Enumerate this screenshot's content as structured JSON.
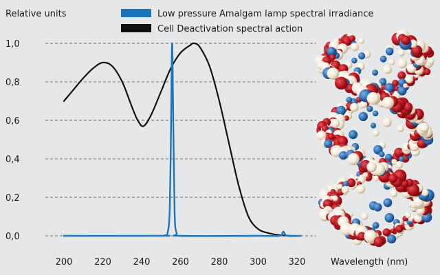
{
  "chart_data": {
    "type": "line",
    "title": "",
    "ylabel": "Relative units",
    "xlabel": "Wavelength (nm)",
    "xlim": [
      200,
      320
    ],
    "ylim": [
      0,
      1
    ],
    "x_ticks": [
      200,
      220,
      240,
      260,
      280,
      300,
      320
    ],
    "y_ticks": [
      {
        "value": 0.0,
        "label": "0,0"
      },
      {
        "value": 0.2,
        "label": "0,2"
      },
      {
        "value": 0.4,
        "label": "0,4"
      },
      {
        "value": 0.6,
        "label": "0,6"
      },
      {
        "value": 0.8,
        "label": "0,8"
      },
      {
        "value": 1.0,
        "label": "1,0"
      }
    ],
    "grid": "horizontal-dashed",
    "legend_position": "top",
    "series": [
      {
        "name": "Low pressure Amalgam lamp spectral irradiance",
        "color": "#1b75bc",
        "x": [
          200,
          250,
          252,
          253.5,
          254.5,
          255.2,
          255.7,
          256.3,
          257,
          258,
          260,
          300,
          311,
          312.5,
          313,
          313.5,
          315,
          322
        ],
        "y": [
          0,
          0,
          0.003,
          0.02,
          0.15,
          0.6,
          1.0,
          0.6,
          0.12,
          0.015,
          0,
          0,
          0,
          0.015,
          0.022,
          0.015,
          0,
          0
        ]
      },
      {
        "name": "Cell Deactivation spectral action",
        "color": "#111111",
        "x": [
          200,
          205,
          210,
          215,
          220,
          225,
          230,
          235,
          238,
          241,
          245,
          250,
          255,
          260,
          265,
          267,
          270,
          275,
          280,
          285,
          290,
          295,
          300,
          305,
          310,
          315,
          320
        ],
        "y": [
          0.7,
          0.76,
          0.82,
          0.87,
          0.9,
          0.88,
          0.8,
          0.67,
          0.6,
          0.57,
          0.63,
          0.75,
          0.87,
          0.95,
          0.99,
          1.0,
          0.98,
          0.88,
          0.7,
          0.48,
          0.26,
          0.1,
          0.035,
          0.015,
          0.005,
          0.001,
          0
        ]
      }
    ]
  },
  "decoration": {
    "image": "dna-double-helix-illustration",
    "colors": [
      "#b5121b",
      "#f2e8d5",
      "#2a6db3"
    ]
  }
}
